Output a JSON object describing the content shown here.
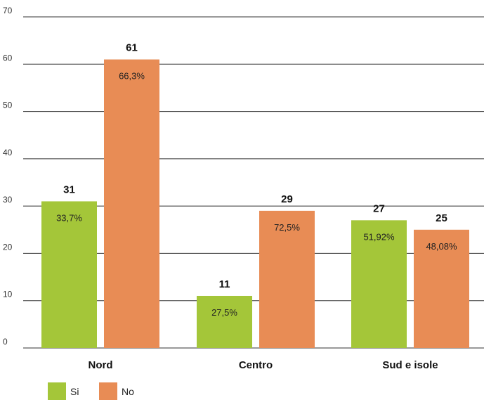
{
  "chart_data": {
    "type": "bar",
    "categories": [
      "Nord",
      "Centro",
      "Sud e isole"
    ],
    "series": [
      {
        "name": "Si",
        "values": [
          31,
          11,
          27
        ],
        "percent_labels": [
          "33,7%",
          "27,5%",
          "51,92%"
        ],
        "color": "#a4c639"
      },
      {
        "name": "No",
        "values": [
          61,
          29,
          25
        ],
        "percent_labels": [
          "66,3%",
          "72,5%",
          "48,08%"
        ],
        "color": "#e88c55"
      }
    ],
    "ylim": [
      0,
      70
    ],
    "yticks": [
      0,
      10,
      20,
      30,
      40,
      50,
      60,
      70
    ],
    "grid": true,
    "legend": "bottom-left"
  }
}
